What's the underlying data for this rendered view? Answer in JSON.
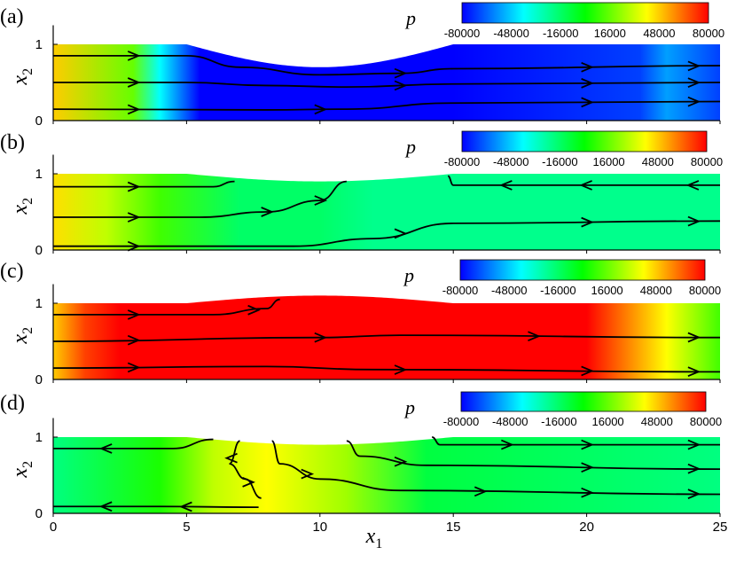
{
  "chart_data": {
    "type": "heatmap",
    "x_label": "x",
    "x_label_sub": "1",
    "y_label": "x",
    "y_label_sub": "2",
    "x_ticks": [
      "0",
      "5",
      "10",
      "15",
      "20",
      "25"
    ],
    "x_tick_values": [
      0,
      5,
      10,
      15,
      20,
      25
    ],
    "xlim": [
      0,
      25
    ],
    "y_ticks": [
      "0",
      "1"
    ],
    "y_tick_values": [
      0,
      1
    ],
    "ylim": [
      0,
      1.25
    ],
    "colorbar": {
      "label": "p",
      "ticks": [
        "-80000",
        "-48000",
        "-16000",
        "16000",
        "48000",
        "80000"
      ],
      "values": [
        -80000,
        -48000,
        -16000,
        16000,
        48000,
        80000
      ],
      "range": [
        -80000,
        80000
      ],
      "colors": [
        "#0000ff",
        "#00ffff",
        "#00ff00",
        "#ffff00",
        "#ff0000"
      ]
    },
    "panels": [
      {
        "label": "(a)",
        "wall": "bulge_down",
        "wall_amplitude": 0.3,
        "pressure_stops": [
          [
            0,
            48000
          ],
          [
            3,
            16000
          ],
          [
            4,
            -40000
          ],
          [
            5.5,
            -80000
          ],
          [
            15,
            -80000
          ],
          [
            22,
            -70000
          ],
          [
            23,
            -55000
          ],
          [
            25,
            -70000
          ]
        ],
        "streamlines": [
          {
            "points": [
              [
                0,
                0.85
              ],
              [
                5,
                0.85
              ],
              [
                7,
                0.7
              ],
              [
                10,
                0.6
              ],
              [
                13,
                0.62
              ],
              [
                15,
                0.68
              ],
              [
                25,
                0.72
              ]
            ],
            "arrows": [
              [
                3,
                1
              ],
              [
                13,
                1
              ],
              [
                20,
                1
              ],
              [
                24,
                1
              ]
            ]
          },
          {
            "points": [
              [
                0,
                0.5
              ],
              [
                5,
                0.5
              ],
              [
                8,
                0.46
              ],
              [
                11,
                0.44
              ],
              [
                15,
                0.48
              ],
              [
                25,
                0.5
              ]
            ],
            "arrows": [
              [
                3,
                1
              ],
              [
                13,
                1
              ],
              [
                20,
                1
              ],
              [
                24,
                1
              ]
            ]
          },
          {
            "points": [
              [
                0,
                0.15
              ],
              [
                8,
                0.14
              ],
              [
                11,
                0.15
              ],
              [
                15,
                0.23
              ],
              [
                25,
                0.25
              ]
            ],
            "arrows": [
              [
                3,
                1
              ],
              [
                10,
                1
              ],
              [
                20,
                1
              ],
              [
                24,
                1
              ]
            ]
          }
        ]
      },
      {
        "label": "(b)",
        "wall": "dip_gentle",
        "wall_amplitude": 0.1,
        "pressure_stops": [
          [
            0,
            45000
          ],
          [
            2,
            30000
          ],
          [
            4,
            10000
          ],
          [
            7,
            -16000
          ],
          [
            10,
            -16000
          ],
          [
            12,
            -22000
          ],
          [
            25,
            -22000
          ]
        ],
        "streamlines": [
          {
            "points": [
              [
                0,
                0.83
              ],
              [
                6,
                0.83
              ],
              [
                6.8,
                0.9
              ]
            ],
            "arrows": [
              [
                3,
                1
              ]
            ]
          },
          {
            "points": [
              [
                0,
                0.43
              ],
              [
                5.5,
                0.43
              ],
              [
                8,
                0.5
              ],
              [
                10,
                0.65
              ],
              [
                11,
                0.9
              ]
            ],
            "arrows": [
              [
                3,
                1
              ],
              [
                8,
                1
              ],
              [
                10,
                1
              ]
            ]
          },
          {
            "points": [
              [
                0,
                0.05
              ],
              [
                9,
                0.05
              ],
              [
                12,
                0.15
              ],
              [
                15,
                0.35
              ],
              [
                25,
                0.38
              ]
            ],
            "arrows": [
              [
                3,
                1
              ],
              [
                13,
                1
              ],
              [
                20,
                1
              ],
              [
                24,
                1
              ]
            ]
          },
          {
            "points": [
              [
                25,
                0.85
              ],
              [
                15,
                0.85
              ],
              [
                14.8,
                0.97
              ]
            ],
            "arrows": [
              [
                20,
                -1
              ],
              [
                24,
                -1
              ],
              [
                17,
                -1
              ]
            ]
          }
        ]
      },
      {
        "label": "(c)",
        "wall": "bulge_up",
        "wall_amplitude": 0.1,
        "pressure_stops": [
          [
            0,
            48000
          ],
          [
            1.2,
            70000
          ],
          [
            2.5,
            80000
          ],
          [
            20,
            80000
          ],
          [
            21.5,
            60000
          ],
          [
            23,
            40000
          ],
          [
            25,
            10000
          ]
        ],
        "streamlines": [
          {
            "points": [
              [
                0,
                0.85
              ],
              [
                6,
                0.85
              ],
              [
                8,
                0.93
              ],
              [
                8.5,
                1.05
              ]
            ],
            "arrows": [
              [
                3,
                1
              ],
              [
                7.5,
                1
              ]
            ]
          },
          {
            "points": [
              [
                0,
                0.5
              ],
              [
                10,
                0.55
              ],
              [
                13,
                0.58
              ],
              [
                25,
                0.55
              ]
            ],
            "arrows": [
              [
                3,
                1
              ],
              [
                10,
                1
              ],
              [
                18,
                1
              ],
              [
                24,
                1
              ]
            ]
          },
          {
            "points": [
              [
                0,
                0.15
              ],
              [
                8,
                0.17
              ],
              [
                12,
                0.13
              ],
              [
                25,
                0.1
              ]
            ],
            "arrows": [
              [
                3,
                1
              ],
              [
                13,
                1
              ],
              [
                20,
                1
              ],
              [
                24,
                1
              ]
            ]
          }
        ]
      },
      {
        "label": "(d)",
        "wall": "dip_gentle",
        "wall_amplitude": 0.1,
        "pressure_stops": [
          [
            0,
            -20000
          ],
          [
            4,
            4000
          ],
          [
            6,
            30000
          ],
          [
            8,
            40000
          ],
          [
            11,
            25000
          ],
          [
            14,
            -10000
          ],
          [
            25,
            -20000
          ]
        ],
        "streamlines": [
          {
            "points": [
              [
                6,
                0.97
              ],
              [
                4.5,
                0.85
              ],
              [
                0,
                0.85
              ]
            ],
            "arrows": [
              [
                2,
                -1
              ]
            ]
          },
          {
            "points": [
              [
                7.7,
                0.08
              ],
              [
                4,
                0.09
              ],
              [
                0,
                0.09
              ]
            ],
            "arrows": [
              [
                2,
                -1
              ],
              [
                5,
                -1
              ]
            ]
          },
          {
            "points": [
              [
                7,
                0.95
              ],
              [
                6.6,
                0.65
              ],
              [
                7.2,
                0.45
              ],
              [
                7.8,
                0.2
              ]
            ],
            "arrows": [
              [
                6.7,
                -1
              ],
              [
                7.3,
                1
              ]
            ]
          },
          {
            "points": [
              [
                8.2,
                0.95
              ],
              [
                8.5,
                0.65
              ],
              [
                10,
                0.45
              ],
              [
                13,
                0.3
              ],
              [
                25,
                0.25
              ]
            ],
            "arrows": [
              [
                9.5,
                1
              ],
              [
                20,
                1
              ],
              [
                24,
                1
              ],
              [
                16,
                1
              ]
            ]
          },
          {
            "points": [
              [
                11,
                0.95
              ],
              [
                11.5,
                0.75
              ],
              [
                14,
                0.63
              ],
              [
                25,
                0.58
              ]
            ],
            "arrows": [
              [
                13,
                1
              ],
              [
                20,
                1
              ],
              [
                24,
                1
              ]
            ]
          },
          {
            "points": [
              [
                14.2,
                1.0
              ],
              [
                14.5,
                0.9
              ],
              [
                25,
                0.9
              ]
            ],
            "arrows": [
              [
                17,
                1
              ],
              [
                20,
                1
              ],
              [
                24,
                1
              ]
            ]
          }
        ]
      }
    ]
  }
}
